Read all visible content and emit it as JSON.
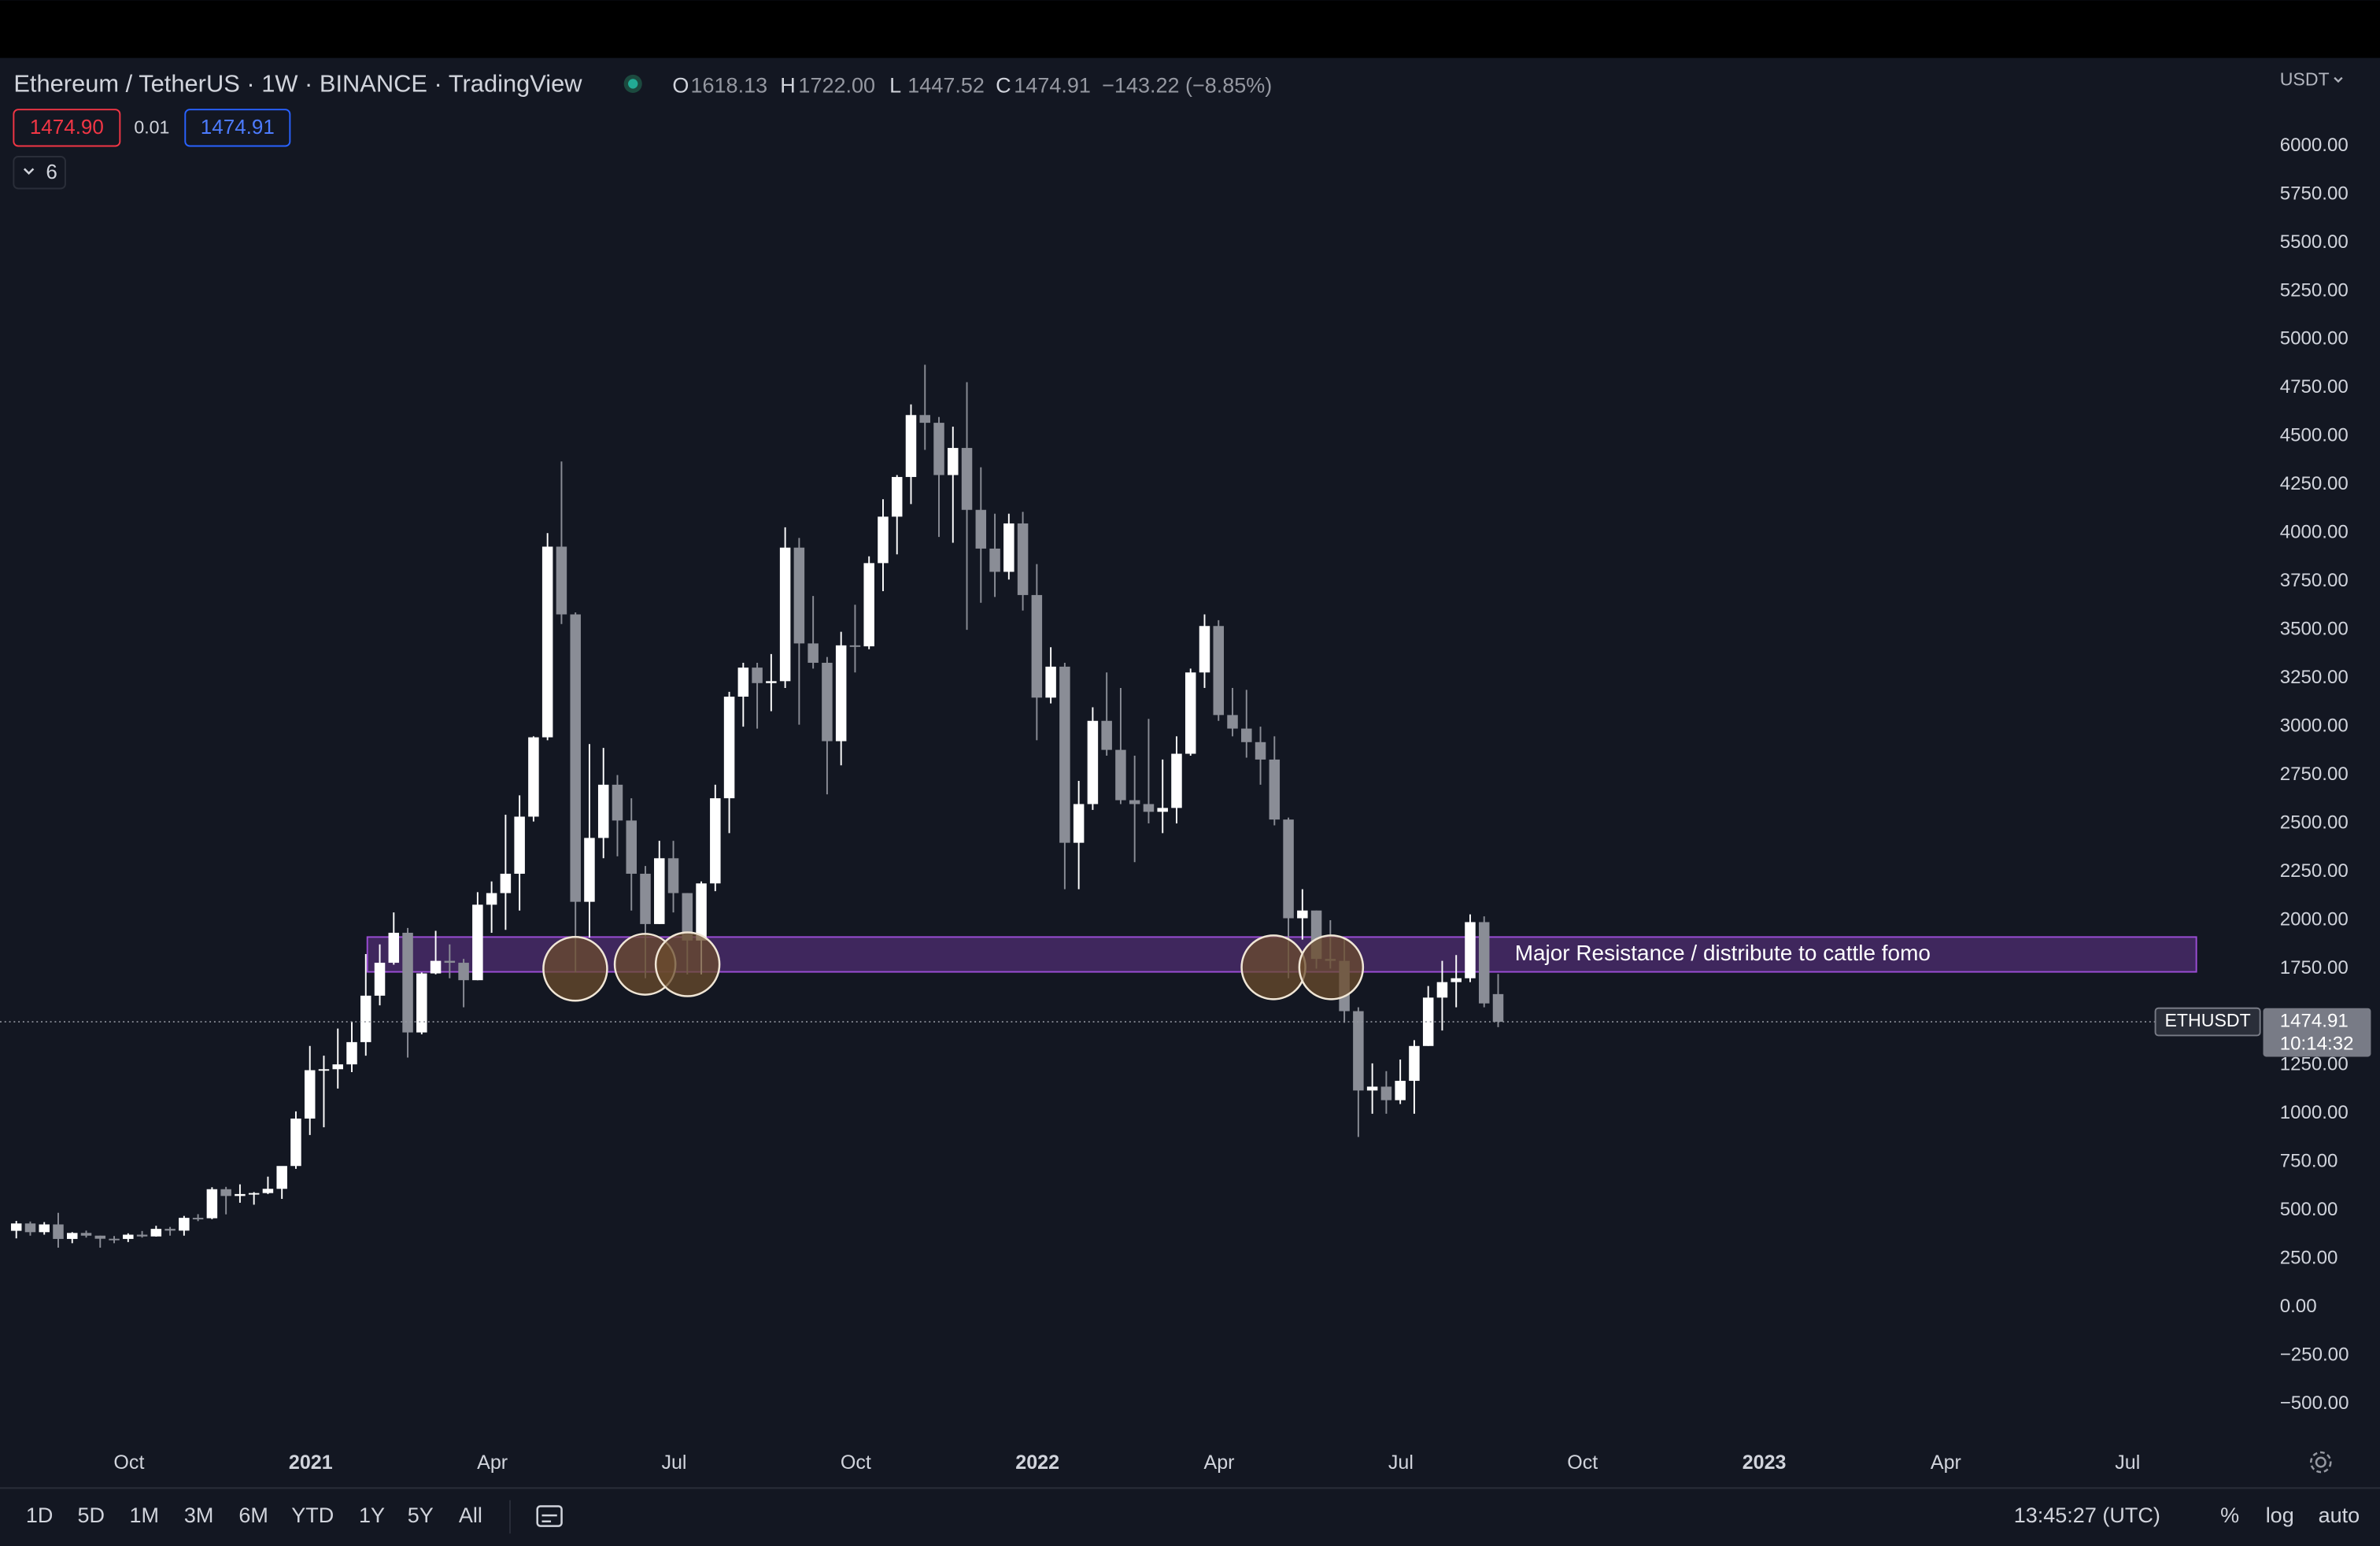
{
  "header": {
    "title": "Ethereum / TetherUS · 1W · BINANCE · TradingView",
    "ohlc": [
      {
        "key": "O",
        "value": "1618.13"
      },
      {
        "key": "H",
        "value": "1722.00"
      },
      {
        "key": "L",
        "value": "1447.52"
      },
      {
        "key": "C",
        "value": "1474.91"
      }
    ],
    "change": "−143.22 (−8.85%)",
    "bid": "1474.90",
    "spread": "0.01",
    "ask": "1474.91",
    "indicators_count": "6",
    "currency": "USDT"
  },
  "toolbar": {
    "ranges": [
      "1D",
      "5D",
      "1M",
      "3M",
      "6M",
      "YTD",
      "1Y",
      "5Y",
      "All"
    ],
    "clock": "13:45:27 (UTC)",
    "options": [
      "%",
      "log",
      "auto"
    ]
  },
  "chart_data": {
    "type": "candlestick",
    "up_color": "#ffffff",
    "down_color": "#8a8d96",
    "grid": false,
    "ylim": [
      -683,
      6455
    ],
    "yticks": [
      {
        "value": -500,
        "label": "−500.00"
      },
      {
        "value": -250,
        "label": "−250.00"
      },
      {
        "value": 0,
        "label": "0.00"
      },
      {
        "value": 250,
        "label": "250.00"
      },
      {
        "value": 500,
        "label": "500.00"
      },
      {
        "value": 750,
        "label": "750.00"
      },
      {
        "value": 1000,
        "label": "1000.00"
      },
      {
        "value": 1250,
        "label": "1250.00"
      },
      {
        "value": 1500,
        "label": "1500.00"
      },
      {
        "value": 1750,
        "label": "1750.00"
      },
      {
        "value": 2000,
        "label": "2000.00"
      },
      {
        "value": 2250,
        "label": "2250.00"
      },
      {
        "value": 2500,
        "label": "2500.00"
      },
      {
        "value": 2750,
        "label": "2750.00"
      },
      {
        "value": 3000,
        "label": "3000.00"
      },
      {
        "value": 3250,
        "label": "3250.00"
      },
      {
        "value": 3500,
        "label": "3500.00"
      },
      {
        "value": 3750,
        "label": "3750.00"
      },
      {
        "value": 4000,
        "label": "4000.00"
      },
      {
        "value": 4250,
        "label": "4250.00"
      },
      {
        "value": 4500,
        "label": "4500.00"
      },
      {
        "value": 4750,
        "label": "4750.00"
      },
      {
        "value": 5000,
        "label": "5000.00"
      },
      {
        "value": 5250,
        "label": "5250.00"
      },
      {
        "value": 5500,
        "label": "5500.00"
      },
      {
        "value": 5750,
        "label": "5750.00"
      },
      {
        "value": 6000,
        "label": "6000.00"
      }
    ],
    "x_axis_labels": [
      "Oct",
      "2021",
      "Apr",
      "Jul",
      "Oct",
      "2022",
      "Apr",
      "Jul",
      "Oct",
      "2023",
      "Apr",
      "Jul"
    ],
    "open": [
      395,
      433,
      388,
      428,
      353,
      384,
      370,
      354,
      353,
      375,
      366,
      405,
      396,
      462,
      460,
      610,
      575,
      585,
      590,
      612,
      730,
      975,
      1225,
      1230,
      1255,
      1370,
      1610,
      1780,
      1935,
      1420,
      1725,
      1790,
      1780,
      1690,
      2080,
      2140,
      2240,
      2535,
      2945,
      3930,
      3580,
      2095,
      2425,
      2700,
      2515,
      2240,
      1980,
      2320,
      2140,
      1895,
      2190,
      2630,
      3155,
      3305,
      3225,
      3235,
      3925,
      3430,
      3330,
      2925,
      3420,
      3415,
      3845,
      4085,
      4290,
      4610,
      4570,
      4300,
      4440,
      4120,
      3920,
      3800,
      4050,
      3680,
      3150,
      3310,
      2400,
      2600,
      3030,
      2880,
      2620,
      2600,
      2560,
      2580,
      2860,
      3280,
      3520,
      3060,
      2990,
      2920,
      2830,
      2520,
      2010,
      2050,
      1800,
      1790,
      1530,
      1120,
      1140,
      1070,
      1170,
      1350,
      1600,
      1680,
      1700,
      1990,
      1618.13
    ],
    "high": [
      446,
      443,
      440,
      488,
      388,
      396,
      370,
      368,
      382,
      394,
      421,
      415,
      472,
      481,
      620,
      622,
      635,
      595,
      675,
      690,
      1012,
      1350,
      1300,
      1440,
      1475,
      1825,
      1875,
      2040,
      1960,
      1730,
      1945,
      1875,
      1800,
      2145,
      2200,
      2545,
      2645,
      2950,
      4000,
      4370,
      3590,
      2910,
      2890,
      2750,
      2630,
      2280,
      2410,
      2410,
      2140,
      2200,
      2700,
      3180,
      3330,
      3330,
      3375,
      4030,
      3975,
      3675,
      3360,
      3490,
      3630,
      3880,
      4175,
      4300,
      4665,
      4870,
      4600,
      4550,
      4780,
      4340,
      4100,
      4100,
      4110,
      3840,
      3410,
      3330,
      2720,
      3100,
      3280,
      3200,
      2850,
      3040,
      2830,
      2950,
      3300,
      3580,
      3550,
      3200,
      3190,
      3000,
      2950,
      2530,
      2160,
      2050,
      2000,
      1910,
      1550,
      1260,
      1220,
      1280,
      1380,
      1660,
      1790,
      1820,
      2030,
      2020,
      1722.0
    ],
    "low": [
      356,
      370,
      375,
      308,
      331,
      360,
      308,
      331,
      337,
      360,
      365,
      370,
      370,
      445,
      455,
      480,
      540,
      530,
      585,
      560,
      715,
      890,
      930,
      1130,
      1215,
      1300,
      1560,
      1770,
      1290,
      1410,
      1720,
      1700,
      1550,
      1690,
      1935,
      1950,
      2050,
      2510,
      2930,
      3530,
      1730,
      1910,
      2320,
      2330,
      2050,
      1700,
      1980,
      2040,
      1720,
      1720,
      2150,
      2450,
      3000,
      2990,
      3080,
      3200,
      3010,
      3300,
      2650,
      2800,
      3280,
      3400,
      3700,
      3890,
      4150,
      4430,
      3980,
      3950,
      3500,
      3640,
      3670,
      3760,
      3600,
      2930,
      3120,
      2160,
      2160,
      2570,
      2850,
      2600,
      2300,
      2500,
      2450,
      2500,
      2850,
      3200,
      3030,
      2950,
      2840,
      2700,
      2490,
      1700,
      1900,
      1750,
      1750,
      1470,
      880,
      1000,
      1000,
      1050,
      1000,
      1350,
      1430,
      1550,
      1680,
      1550,
      1447.52
    ],
    "close": [
      433,
      388,
      428,
      353,
      384,
      370,
      354,
      353,
      375,
      366,
      405,
      396,
      462,
      460,
      610,
      575,
      585,
      590,
      612,
      730,
      975,
      1225,
      1230,
      1255,
      1370,
      1610,
      1780,
      1935,
      1420,
      1725,
      1790,
      1780,
      1690,
      2080,
      2140,
      2240,
      2535,
      2945,
      3930,
      3580,
      2095,
      2425,
      2700,
      2515,
      2240,
      1980,
      2320,
      2140,
      1895,
      2190,
      2630,
      3155,
      3305,
      3225,
      3235,
      3925,
      3430,
      3330,
      2925,
      3420,
      3415,
      3845,
      4085,
      4290,
      4610,
      4570,
      4300,
      4440,
      4120,
      3920,
      3800,
      4050,
      3680,
      3150,
      3310,
      2400,
      2600,
      3030,
      2880,
      2620,
      2600,
      2560,
      2580,
      2860,
      3280,
      3520,
      3060,
      2990,
      2920,
      2830,
      2520,
      2010,
      2050,
      1800,
      1790,
      1530,
      1120,
      1140,
      1070,
      1170,
      1350,
      1600,
      1680,
      1700,
      1990,
      1570,
      1474.91
    ],
    "resistance_zone": {
      "low": 1733,
      "high": 1913,
      "label": "Major Resistance / distribute to cattle fomo"
    },
    "price_tag": {
      "symbol": "ETHUSDT",
      "price": "1474.91",
      "countdown": "10:14:32"
    }
  }
}
